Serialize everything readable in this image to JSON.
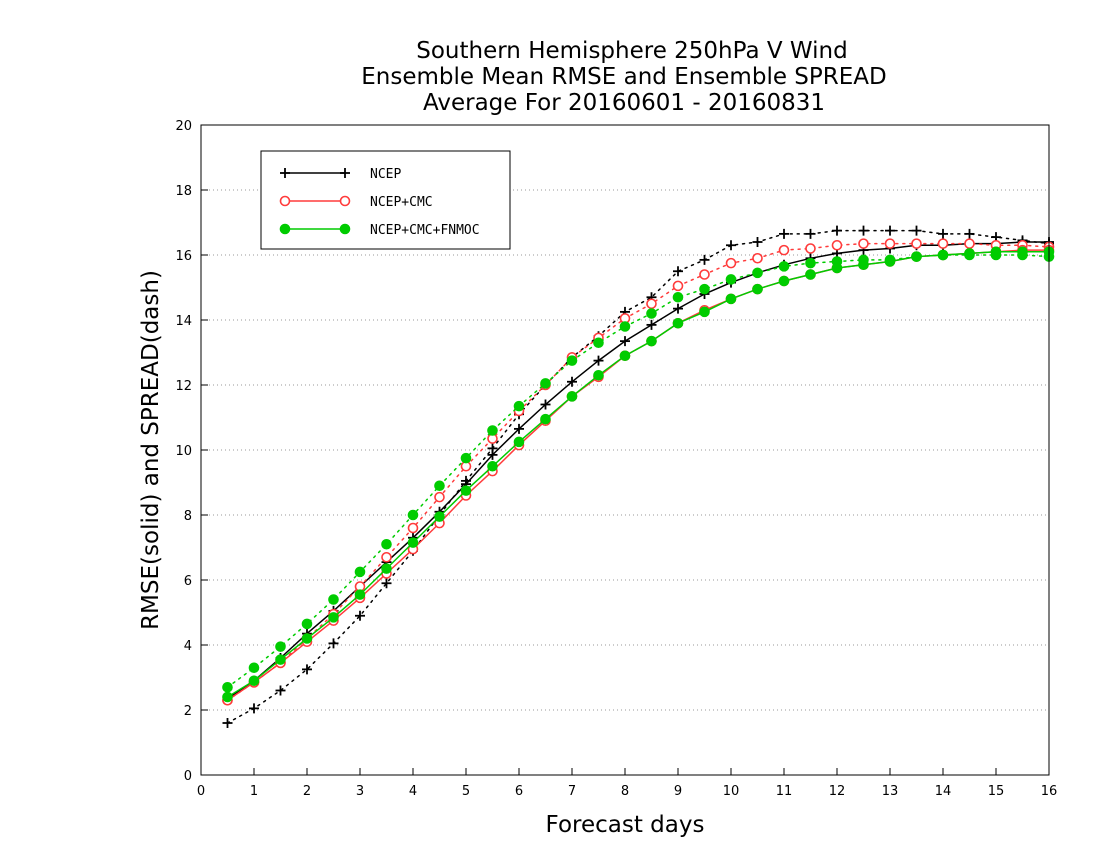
{
  "chart_data": {
    "type": "line",
    "title": [
      "Southern Hemisphere 250hPa V Wind",
      "Ensemble Mean RMSE and Ensemble SPREAD",
      "Average For 20160601 - 20160831"
    ],
    "xlabel": "Forecast days",
    "ylabel": "RMSE(solid) and SPREAD(dash)",
    "xlim": [
      0,
      16
    ],
    "ylim": [
      0,
      20
    ],
    "x_ticks": [
      "0",
      "1",
      "2",
      "3",
      "4",
      "5",
      "6",
      "7",
      "8",
      "9",
      "10",
      "11",
      "12",
      "13",
      "14",
      "15",
      "16"
    ],
    "y_ticks": [
      "0",
      "2",
      "4",
      "6",
      "8",
      "10",
      "12",
      "14",
      "16",
      "18",
      "20"
    ],
    "grid": "horizontal-dotted",
    "legend_position": "top-left",
    "x": [
      0.5,
      1,
      1.5,
      2,
      2.5,
      3,
      3.5,
      4,
      4.5,
      5,
      5.5,
      6,
      6.5,
      7,
      7.5,
      8,
      8.5,
      9,
      9.5,
      10,
      10.5,
      11,
      11.5,
      12,
      12.5,
      13,
      13.5,
      14,
      14.5,
      15,
      15.5,
      16
    ],
    "series": [
      {
        "name": "NCEP",
        "color": "#000000",
        "marker": "plus",
        "rmse": [
          2.35,
          2.9,
          3.6,
          4.35,
          5.05,
          5.8,
          6.55,
          7.3,
          8.1,
          8.95,
          9.85,
          10.65,
          11.4,
          12.1,
          12.75,
          13.35,
          13.85,
          14.35,
          14.8,
          15.15,
          15.45,
          15.7,
          15.9,
          16.05,
          16.15,
          16.2,
          16.3,
          16.3,
          16.35,
          16.35,
          16.4,
          16.4
        ],
        "spread": [
          1.6,
          2.05,
          2.6,
          3.25,
          4.05,
          4.9,
          5.9,
          6.9,
          8.0,
          9.05,
          10.05,
          11.1,
          12.0,
          12.85,
          13.5,
          14.25,
          14.7,
          15.5,
          15.85,
          16.3,
          16.4,
          16.65,
          16.65,
          16.75,
          16.75,
          16.75,
          16.75,
          16.65,
          16.65,
          16.55,
          16.45,
          16.35
        ]
      },
      {
        "name": "NCEP+CMC",
        "color": "#ff3b3b",
        "marker": "open-circle",
        "rmse": [
          2.3,
          2.85,
          3.45,
          4.1,
          4.75,
          5.45,
          6.2,
          6.95,
          7.75,
          8.6,
          9.35,
          10.15,
          10.9,
          11.65,
          12.25,
          12.9,
          13.35,
          13.9,
          14.3,
          14.65,
          14.95,
          15.2,
          15.4,
          15.6,
          15.7,
          15.8,
          15.95,
          16.0,
          16.05,
          16.1,
          16.15,
          16.15
        ],
        "spread": [
          2.3,
          2.85,
          3.45,
          4.2,
          4.95,
          5.8,
          6.7,
          7.6,
          8.55,
          9.5,
          10.35,
          11.2,
          12.0,
          12.85,
          13.45,
          14.05,
          14.5,
          15.05,
          15.4,
          15.75,
          15.9,
          16.15,
          16.2,
          16.3,
          16.35,
          16.35,
          16.35,
          16.35,
          16.35,
          16.3,
          16.3,
          16.25
        ]
      },
      {
        "name": "NCEP+CMC+FNMOC",
        "color": "#00cc00",
        "marker": "filled-circle",
        "rmse": [
          2.4,
          2.9,
          3.55,
          4.2,
          4.85,
          5.55,
          6.35,
          7.15,
          7.95,
          8.75,
          9.5,
          10.25,
          10.95,
          11.65,
          12.3,
          12.9,
          13.35,
          13.9,
          14.25,
          14.65,
          14.95,
          15.2,
          15.4,
          15.6,
          15.7,
          15.8,
          15.95,
          16.0,
          16.05,
          16.1,
          16.1,
          16.1
        ],
        "spread": [
          2.7,
          3.3,
          3.95,
          4.65,
          5.4,
          6.25,
          7.1,
          8.0,
          8.9,
          9.75,
          10.6,
          11.35,
          12.05,
          12.75,
          13.3,
          13.8,
          14.2,
          14.7,
          14.95,
          15.25,
          15.45,
          15.65,
          15.75,
          15.8,
          15.85,
          15.85,
          15.95,
          16.0,
          16.0,
          16.0,
          16.0,
          15.95
        ]
      }
    ]
  }
}
